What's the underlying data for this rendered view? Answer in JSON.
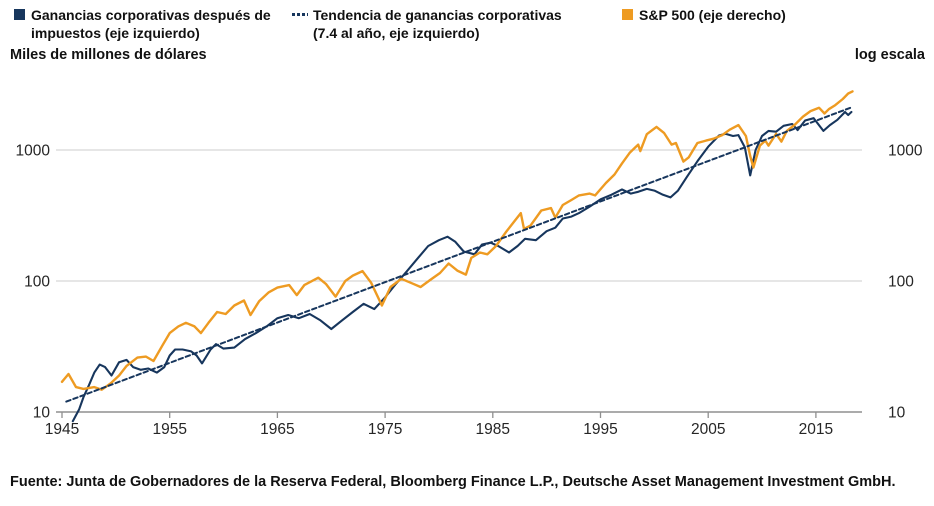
{
  "footer": "Fuente: Junta de Gobernadores de la Reserva Federal, Bloomberg Finance L.P., Deutsche Asset Management Investment GmbH.",
  "chart_data": {
    "type": "line",
    "scale": "log",
    "title": "",
    "left_axis_caption": "Miles de millones de dólares",
    "right_axis_caption": "log escala",
    "x_ticks": [
      1945,
      1955,
      1965,
      1975,
      1985,
      1995,
      2005,
      2015
    ],
    "y_ticks": [
      10,
      100,
      1000
    ],
    "xlim": [
      1944.5,
      2019.5
    ],
    "ylim": [
      10,
      2700
    ],
    "grid": "horizontal",
    "legend_position": "top",
    "series": [
      {
        "id": "profits",
        "name": "Ganancias corporativas después de impuestos (eje izquierdo)",
        "axis": "left",
        "units": "miles de millones de dólares",
        "color": "#17365d",
        "style": "solid",
        "marker": "square",
        "points": [
          [
            1946,
            8.5
          ],
          [
            1946.6,
            10.5
          ],
          [
            1947,
            13
          ],
          [
            1947.5,
            16
          ],
          [
            1948,
            20
          ],
          [
            1948.5,
            23
          ],
          [
            1949,
            22
          ],
          [
            1949.6,
            19
          ],
          [
            1950.3,
            24
          ],
          [
            1951,
            25
          ],
          [
            1951.6,
            22
          ],
          [
            1952.3,
            21
          ],
          [
            1953,
            21.5
          ],
          [
            1953.8,
            20
          ],
          [
            1954.5,
            22
          ],
          [
            1955,
            27
          ],
          [
            1955.5,
            30
          ],
          [
            1956.2,
            30
          ],
          [
            1957,
            29
          ],
          [
            1957.5,
            27
          ],
          [
            1958,
            23.5
          ],
          [
            1958.8,
            30
          ],
          [
            1959.3,
            33
          ],
          [
            1960,
            30.5
          ],
          [
            1961,
            31
          ],
          [
            1962,
            36
          ],
          [
            1963,
            40
          ],
          [
            1964,
            45
          ],
          [
            1965,
            52
          ],
          [
            1966,
            55
          ],
          [
            1967,
            52
          ],
          [
            1968,
            56
          ],
          [
            1969,
            50
          ],
          [
            1970,
            43
          ],
          [
            1971,
            50
          ],
          [
            1972,
            58
          ],
          [
            1973,
            67
          ],
          [
            1974,
            61
          ],
          [
            1975,
            75
          ],
          [
            1976,
            95
          ],
          [
            1977,
            118
          ],
          [
            1978,
            148
          ],
          [
            1979,
            185
          ],
          [
            1980,
            205
          ],
          [
            1980.8,
            218
          ],
          [
            1981.5,
            200
          ],
          [
            1982.3,
            168
          ],
          [
            1983.3,
            160
          ],
          [
            1984,
            190
          ],
          [
            1984.8,
            196
          ],
          [
            1985.5,
            185
          ],
          [
            1986.5,
            165
          ],
          [
            1987.3,
            185
          ],
          [
            1988,
            210
          ],
          [
            1989,
            205
          ],
          [
            1990,
            240
          ],
          [
            1990.8,
            255
          ],
          [
            1991.5,
            300
          ],
          [
            1992.3,
            310
          ],
          [
            1993,
            330
          ],
          [
            1994,
            370
          ],
          [
            1995,
            420
          ],
          [
            1996,
            455
          ],
          [
            1997,
            500
          ],
          [
            1997.8,
            465
          ],
          [
            1998.5,
            480
          ],
          [
            1999.3,
            505
          ],
          [
            2000,
            490
          ],
          [
            2000.8,
            455
          ],
          [
            2001.5,
            435
          ],
          [
            2002.2,
            490
          ],
          [
            2003,
            620
          ],
          [
            2004,
            820
          ],
          [
            2005,
            1060
          ],
          [
            2006,
            1290
          ],
          [
            2006.6,
            1330
          ],
          [
            2007.3,
            1280
          ],
          [
            2007.8,
            1300
          ],
          [
            2008.4,
            1050
          ],
          [
            2008.9,
            640
          ],
          [
            2009.4,
            1000
          ],
          [
            2010,
            1280
          ],
          [
            2010.6,
            1400
          ],
          [
            2011.3,
            1380
          ],
          [
            2012,
            1530
          ],
          [
            2012.8,
            1580
          ],
          [
            2013.3,
            1420
          ],
          [
            2014,
            1680
          ],
          [
            2014.8,
            1750
          ],
          [
            2015.7,
            1400
          ],
          [
            2016.3,
            1550
          ],
          [
            2017,
            1700
          ],
          [
            2017.7,
            1950
          ],
          [
            2018,
            1850
          ],
          [
            2018.3,
            1950
          ]
        ]
      },
      {
        "id": "trend",
        "name": "Tendencia de ganancias corporativas (7.4 al año, eje izquierdo)",
        "axis": "left",
        "growth_rate_per_year": 7.4,
        "color": "#17365d",
        "style": "dashed",
        "marker": "dashes",
        "points": [
          [
            1945.4,
            12
          ],
          [
            2018.4,
            2130
          ]
        ]
      },
      {
        "id": "sp500",
        "name": "S&P 500 (eje derecho)",
        "axis": "right",
        "units": "índice, log escala",
        "color": "#ee9b22",
        "style": "solid",
        "marker": "square",
        "points": [
          [
            1945,
            17
          ],
          [
            1945.6,
            19.5
          ],
          [
            1946.3,
            15.5
          ],
          [
            1947,
            15
          ],
          [
            1948,
            15.5
          ],
          [
            1948.7,
            14.8
          ],
          [
            1949.5,
            16.5
          ],
          [
            1950.3,
            19
          ],
          [
            1951,
            22.5
          ],
          [
            1952,
            26
          ],
          [
            1952.8,
            26.5
          ],
          [
            1953.5,
            24.5
          ],
          [
            1954.3,
            32
          ],
          [
            1955,
            40
          ],
          [
            1955.8,
            45
          ],
          [
            1956.5,
            48
          ],
          [
            1957.3,
            45
          ],
          [
            1957.9,
            40
          ],
          [
            1958.6,
            48
          ],
          [
            1959.4,
            58
          ],
          [
            1960.2,
            56
          ],
          [
            1961,
            65
          ],
          [
            1961.9,
            71
          ],
          [
            1962.5,
            55
          ],
          [
            1963.3,
            70
          ],
          [
            1964.2,
            82
          ],
          [
            1965,
            89
          ],
          [
            1966.1,
            93
          ],
          [
            1966.8,
            78
          ],
          [
            1967.5,
            93
          ],
          [
            1968.8,
            106
          ],
          [
            1969.5,
            95
          ],
          [
            1970.4,
            76
          ],
          [
            1971.3,
            100
          ],
          [
            1972,
            110
          ],
          [
            1972.9,
            119
          ],
          [
            1973.7,
            97
          ],
          [
            1974.7,
            65
          ],
          [
            1975.5,
            90
          ],
          [
            1976.5,
            104
          ],
          [
            1977.5,
            96
          ],
          [
            1978.3,
            90
          ],
          [
            1979.2,
            102
          ],
          [
            1980.1,
            115
          ],
          [
            1980.9,
            136
          ],
          [
            1981.7,
            120
          ],
          [
            1982.5,
            112
          ],
          [
            1983,
            150
          ],
          [
            1983.8,
            165
          ],
          [
            1984.5,
            160
          ],
          [
            1985.3,
            185
          ],
          [
            1986.2,
            235
          ],
          [
            1987,
            285
          ],
          [
            1987.6,
            330
          ],
          [
            1987.9,
            250
          ],
          [
            1988.5,
            265
          ],
          [
            1989.5,
            345
          ],
          [
            1990.4,
            360
          ],
          [
            1990.8,
            305
          ],
          [
            1991.5,
            380
          ],
          [
            1992.3,
            415
          ],
          [
            1993,
            450
          ],
          [
            1994,
            465
          ],
          [
            1994.5,
            450
          ],
          [
            1995.5,
            560
          ],
          [
            1996.3,
            650
          ],
          [
            1997,
            790
          ],
          [
            1997.7,
            950
          ],
          [
            1998.5,
            1100
          ],
          [
            1998.7,
            980
          ],
          [
            1999.3,
            1320
          ],
          [
            2000.2,
            1500
          ],
          [
            2000.9,
            1350
          ],
          [
            2001.6,
            1100
          ],
          [
            2002,
            1130
          ],
          [
            2002.7,
            815
          ],
          [
            2003.2,
            880
          ],
          [
            2004,
            1130
          ],
          [
            2004.8,
            1180
          ],
          [
            2005.5,
            1220
          ],
          [
            2006.3,
            1300
          ],
          [
            2007,
            1430
          ],
          [
            2007.8,
            1550
          ],
          [
            2008.5,
            1280
          ],
          [
            2008.9,
            900
          ],
          [
            2009.2,
            735
          ],
          [
            2009.8,
            1080
          ],
          [
            2010.3,
            1180
          ],
          [
            2010.6,
            1080
          ],
          [
            2011.3,
            1330
          ],
          [
            2011.8,
            1160
          ],
          [
            2012.3,
            1400
          ],
          [
            2013,
            1550
          ],
          [
            2013.8,
            1800
          ],
          [
            2014.5,
            1980
          ],
          [
            2015.3,
            2100
          ],
          [
            2015.8,
            1900
          ],
          [
            2016.2,
            2050
          ],
          [
            2016.8,
            2200
          ],
          [
            2017.5,
            2450
          ],
          [
            2018,
            2700
          ],
          [
            2018.4,
            2800
          ]
        ]
      }
    ]
  }
}
